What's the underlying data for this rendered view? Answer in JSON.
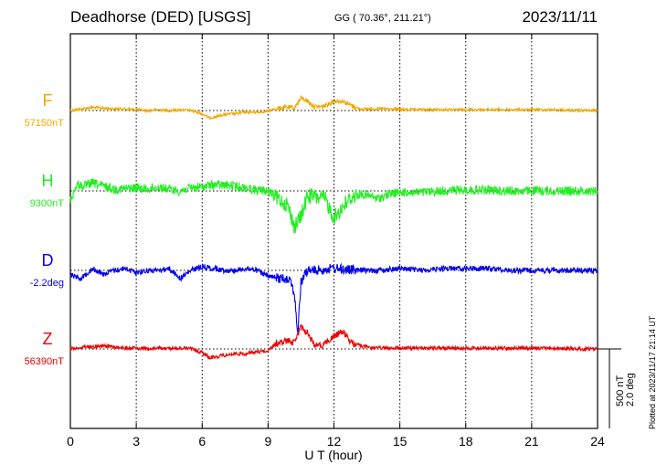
{
  "header": {
    "title": "Deadhorse (DED)  [USGS]",
    "coordinates": "GG ( 70.36°, 211.21°)",
    "date": "2023/11/11"
  },
  "footer": {
    "plotted_at": "Plotted at 2023/11/17 21:14 UT",
    "scale_nt": "500 nT",
    "scale_deg": "2.0 deg"
  },
  "chart_data": {
    "type": "line",
    "xlabel": "U T (hour)",
    "x_ticks": [
      0,
      3,
      6,
      9,
      12,
      15,
      18,
      21,
      24
    ],
    "xlim": [
      0,
      24
    ],
    "grid": true,
    "scale_bar": {
      "field_nT": 500,
      "declination_deg": 2.0
    },
    "series": [
      {
        "name": "F",
        "baseline_label": "57150nT",
        "color": "#f0a800",
        "x": [
          0,
          0.5,
          1.0,
          1.5,
          2.0,
          2.5,
          3.0,
          3.5,
          4.0,
          4.5,
          5.0,
          5.5,
          6.0,
          6.3,
          6.6,
          7.0,
          7.5,
          8.0,
          8.5,
          9.0,
          9.3,
          9.6,
          9.9,
          10.2,
          10.5,
          10.8,
          11.1,
          11.5,
          12.0,
          12.4,
          12.8,
          13.2,
          13.6,
          14.0,
          14.5,
          15.0,
          16.0,
          17.0,
          18.0,
          19.0,
          20.0,
          21.0,
          22.0,
          23.0,
          24.0
        ],
        "y": [
          0,
          10,
          20,
          15,
          10,
          10,
          5,
          0,
          5,
          0,
          5,
          0,
          -20,
          -45,
          -40,
          -25,
          -20,
          -10,
          -10,
          -5,
          10,
          15,
          20,
          15,
          80,
          60,
          25,
          25,
          60,
          60,
          30,
          10,
          10,
          10,
          10,
          5,
          5,
          5,
          5,
          5,
          5,
          5,
          5,
          0,
          0
        ]
      },
      {
        "name": "H",
        "baseline_label": "9300nT",
        "color": "#22ee22",
        "x": [
          0,
          0.3,
          0.6,
          1.0,
          1.5,
          2.0,
          2.5,
          3.0,
          3.5,
          4.0,
          4.5,
          5.0,
          5.5,
          6.0,
          6.5,
          7.0,
          7.5,
          8.0,
          8.5,
          9.0,
          9.3,
          9.6,
          9.9,
          10.2,
          10.5,
          10.8,
          11.2,
          11.6,
          12.0,
          12.4,
          12.8,
          13.2,
          13.6,
          14.0,
          14.5,
          15.0,
          16.0,
          17.0,
          18.0,
          19.0,
          20.0,
          21.0,
          22.0,
          23.0,
          24.0
        ],
        "y": [
          -60,
          40,
          30,
          50,
          30,
          10,
          15,
          20,
          10,
          25,
          10,
          0,
          20,
          25,
          40,
          35,
          30,
          20,
          5,
          0,
          -40,
          -60,
          -90,
          -230,
          -160,
          -30,
          -40,
          -50,
          -170,
          -100,
          -40,
          -20,
          -30,
          -50,
          -20,
          -10,
          -10,
          0,
          5,
          5,
          0,
          0,
          0,
          0,
          0
        ]
      },
      {
        "name": "D",
        "baseline_label": "-2.2deg",
        "color": "#0000ee",
        "x": [
          0,
          0.5,
          1.0,
          1.5,
          2.0,
          2.5,
          3.0,
          3.5,
          4.0,
          4.5,
          5.0,
          5.5,
          6.0,
          6.5,
          7.0,
          7.5,
          8.0,
          8.5,
          9.0,
          9.5,
          10.0,
          10.2,
          10.35,
          10.5,
          10.8,
          11.2,
          12.0,
          13.0,
          14.0,
          15.0,
          16.0,
          17.0,
          18.0,
          19.0,
          20.0,
          21.0,
          22.0,
          23.0,
          24.0
        ],
        "y": [
          -0.1,
          -0.2,
          0.05,
          -0.1,
          0.0,
          0.05,
          -0.05,
          0.0,
          0.0,
          0.05,
          -0.2,
          0.0,
          0.1,
          0.05,
          0.0,
          0.0,
          0.05,
          0.0,
          -0.15,
          -0.2,
          -0.2,
          -0.6,
          -1.6,
          -0.3,
          0.0,
          0.0,
          0.05,
          0.0,
          0.0,
          0.05,
          0.0,
          0.05,
          0.05,
          0.05,
          0.0,
          0.0,
          0.0,
          0.0,
          0.0
        ]
      },
      {
        "name": "Z",
        "baseline_label": "56390nT",
        "color": "#ee0000",
        "x": [
          0,
          0.5,
          1.0,
          1.5,
          2.0,
          2.5,
          3.0,
          3.5,
          4.0,
          4.5,
          5.0,
          5.5,
          6.0,
          6.3,
          6.6,
          7.0,
          7.5,
          8.0,
          8.5,
          9.0,
          9.3,
          9.6,
          9.9,
          10.2,
          10.5,
          10.8,
          11.1,
          11.5,
          12.0,
          12.4,
          12.8,
          13.2,
          13.6,
          14.0,
          14.5,
          15.0,
          16.0,
          17.0,
          18.0,
          19.0,
          20.0,
          21.0,
          22.0,
          23.0,
          24.0
        ],
        "y": [
          0,
          10,
          15,
          20,
          10,
          5,
          5,
          0,
          5,
          0,
          5,
          0,
          -20,
          -55,
          -50,
          -40,
          -30,
          -30,
          -20,
          -10,
          30,
          40,
          50,
          40,
          140,
          100,
          25,
          25,
          80,
          110,
          40,
          20,
          10,
          5,
          5,
          5,
          5,
          5,
          5,
          5,
          5,
          5,
          5,
          0,
          0
        ]
      }
    ]
  }
}
